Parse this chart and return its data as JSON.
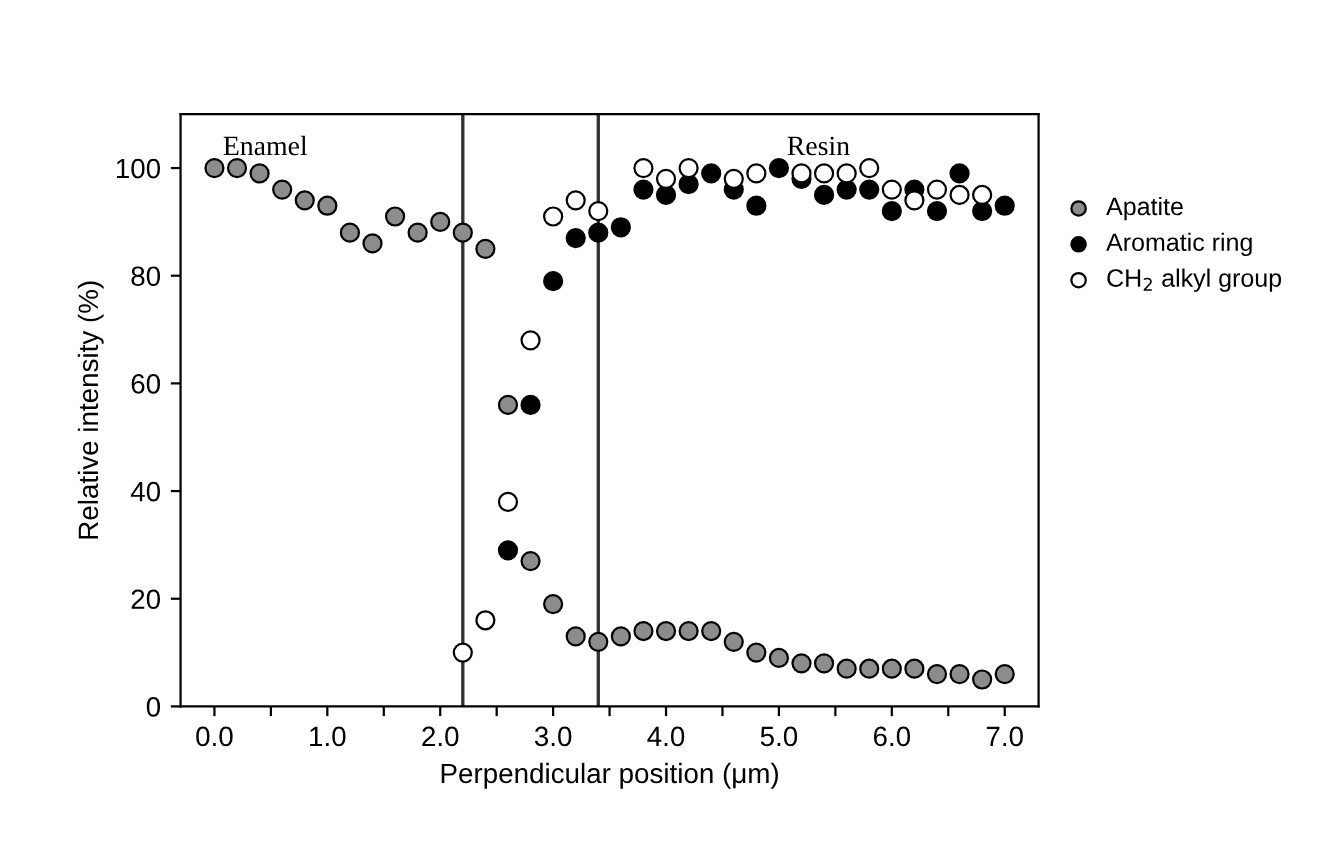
{
  "chart_data": {
    "type": "scatter",
    "xlabel": "Perpendicular position (μm)",
    "annotations": [
      "Enamel",
      "Resin"
    ],
    "ylabel": "Relative intensity (%)",
    "x": [
      0.0,
      0.2,
      0.4,
      0.6,
      0.8,
      1.0,
      1.2,
      1.4,
      1.6,
      1.8,
      2.0,
      2.2,
      2.4,
      2.6,
      2.8,
      3.0,
      3.2,
      3.4,
      3.6,
      3.8,
      4.0,
      4.2,
      4.4,
      4.6,
      4.8,
      5.0,
      5.2,
      5.4,
      5.6,
      5.8,
      6.0,
      6.2,
      6.4,
      6.6,
      6.8,
      7.0
    ],
    "series": [
      {
        "name": "Apatite",
        "color": "#8c8c8c",
        "values": [
          100,
          100,
          99,
          96,
          94,
          93,
          88,
          86,
          91,
          88,
          90,
          88,
          85,
          56,
          27,
          19,
          13,
          12,
          13,
          14,
          14,
          14,
          14,
          12,
          10,
          9,
          8,
          8,
          7,
          7,
          7,
          7,
          6,
          6,
          5,
          6
        ]
      },
      {
        "name": "Aromatic ring",
        "color": "#000000",
        "values": [
          null,
          null,
          null,
          null,
          null,
          null,
          null,
          null,
          null,
          null,
          null,
          null,
          null,
          29,
          56,
          79,
          87,
          88,
          89,
          96,
          95,
          97,
          99,
          96,
          93,
          100,
          98,
          95,
          96,
          96,
          92,
          96,
          92,
          99,
          92,
          93
        ]
      },
      {
        "name": "CH$_{2}$ alkyl group",
        "color": "#ffffff",
        "values": [
          null,
          null,
          null,
          null,
          null,
          null,
          null,
          null,
          null,
          null,
          null,
          10,
          16,
          38,
          68,
          91,
          94,
          92,
          null,
          100,
          98,
          100,
          null,
          98,
          99,
          null,
          99,
          99,
          99,
          100,
          96,
          94,
          96,
          95,
          95,
          null
        ]
      }
    ],
    "marker": "circle",
    "legend": "right",
    "xlim": [
      -0.3,
      7.3
    ],
    "ylim": [
      0,
      110
    ],
    "xticks": [
      {
        "value": 0,
        "label": "0.0"
      },
      {
        "value": 0.5,
        "label": null
      },
      {
        "value": 1,
        "label": "1.0"
      },
      {
        "value": 1.5,
        "label": null
      },
      {
        "value": 2,
        "label": "2.0"
      },
      {
        "value": 2.5,
        "label": null
      },
      {
        "value": 3,
        "label": "3.0"
      },
      {
        "value": 3.5,
        "label": null
      },
      {
        "value": 4,
        "label": "4.0"
      },
      {
        "value": 4.5,
        "label": null
      },
      {
        "value": 5,
        "label": "5.0"
      },
      {
        "value": 5.5,
        "label": null
      },
      {
        "value": 6,
        "label": "6.0"
      },
      {
        "value": 6.5,
        "label": null
      },
      {
        "value": 7,
        "label": "7.0"
      }
    ],
    "yticks": [
      0,
      20,
      40,
      60,
      80,
      100
    ],
    "ref_lines": [
      {
        "axis": "x",
        "value": 2.2,
        "color": "#333333"
      },
      {
        "axis": "x",
        "value": 3.4,
        "color": "#333333"
      }
    ],
    "grid": false
  }
}
